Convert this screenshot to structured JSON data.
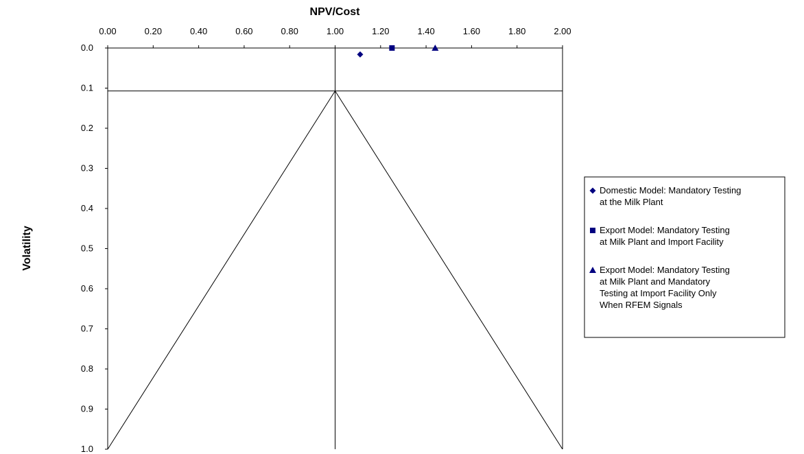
{
  "chart_data": {
    "type": "scatter",
    "xlabel": "NPV/Cost",
    "ylabel": "Volatility",
    "xlim": [
      0,
      2
    ],
    "ylim": [
      0,
      1
    ],
    "y_inverted": true,
    "x_axis_position": "top",
    "x_ticks": [
      0.0,
      0.2,
      0.4,
      0.6,
      0.8,
      1.0,
      1.2,
      1.4,
      1.6,
      1.8,
      2.0
    ],
    "x_tick_labels": [
      "0.00",
      "0.20",
      "0.40",
      "0.60",
      "0.80",
      "1.00",
      "1.20",
      "1.40",
      "1.60",
      "1.80",
      "2.00"
    ],
    "y_ticks": [
      0.0,
      0.1,
      0.2,
      0.3,
      0.4,
      0.5,
      0.6,
      0.7,
      0.8,
      0.9,
      1.0
    ],
    "y_tick_labels": [
      "0.0",
      "0.1",
      "0.2",
      "0.3",
      "0.4",
      "0.5",
      "0.6",
      "0.7",
      "0.8",
      "0.9",
      "1.0"
    ],
    "grid": false,
    "legend_position": "right",
    "series": [
      {
        "name": "Domestic Model: Mandatory Testing at the Milk Plant",
        "legend_lines": [
          "Domestic Model: Mandatory Testing",
          "at the Milk Plant"
        ],
        "marker": "diamond",
        "color": "#000080",
        "points": [
          {
            "x": 1.11,
            "y": 0.016
          }
        ]
      },
      {
        "name": "Export Model: Mandatory Testing at Milk Plant and Import  Facility",
        "legend_lines": [
          "Export Model: Mandatory Testing",
          "at Milk Plant and Import  Facility"
        ],
        "marker": "square",
        "color": "#000080",
        "points": [
          {
            "x": 1.25,
            "y": 0.0
          }
        ]
      },
      {
        "name": "Export Model: Mandatory Testing at Milk Plant and Mandatory Testing at Import Facility Only When RFEM Signals",
        "legend_lines": [
          "Export Model: Mandatory Testing",
          "at Milk Plant and Mandatory",
          "Testing at Import Facility Only",
          "When RFEM Signals"
        ],
        "marker": "triangle",
        "color": "#000080",
        "points": [
          {
            "x": 1.44,
            "y": 0.0
          }
        ]
      }
    ],
    "reference_lines": {
      "vertical_x": 1.0,
      "horizontal_y": 0.107,
      "triangle_apex": {
        "x": 1.0,
        "y": 0.107
      },
      "triangle_left_base": {
        "x": 0.0,
        "y": 1.0
      },
      "triangle_right_base": {
        "x": 2.0,
        "y": 1.0
      }
    }
  }
}
